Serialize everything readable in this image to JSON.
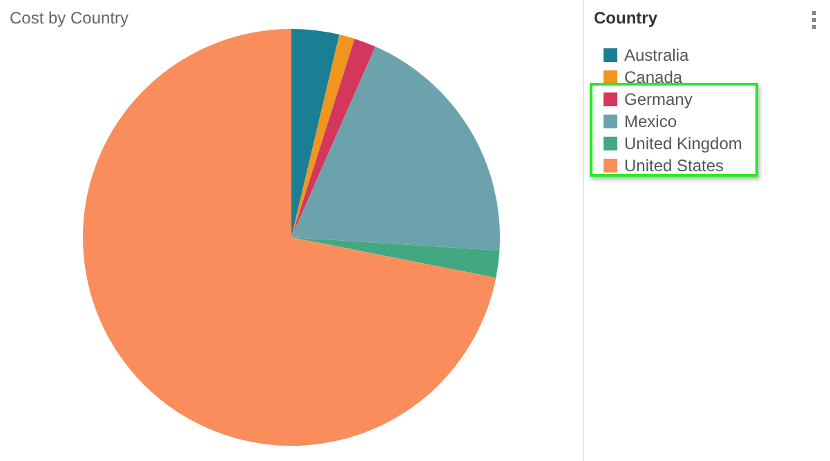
{
  "chart_data": {
    "type": "pie",
    "title": "Cost by Country",
    "legend_title": "Country",
    "legend": "top right",
    "categories": [
      "Australia",
      "Canada",
      "Germany",
      "Mexico",
      "United Kingdom",
      "United States"
    ],
    "values": [
      3.7,
      1.2,
      1.7,
      19.4,
      2.1,
      71.9
    ],
    "colors": [
      "#1a7f94",
      "#f0961e",
      "#d3375c",
      "#6ca2ac",
      "#41a882",
      "#f98e5c"
    ]
  }
}
